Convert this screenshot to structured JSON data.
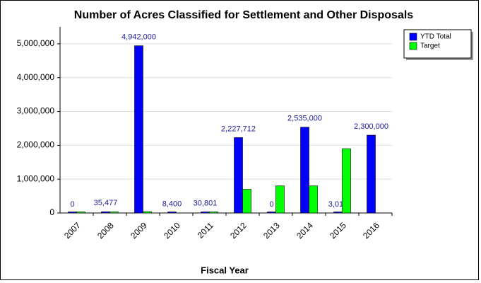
{
  "chart_data": {
    "type": "bar",
    "title": "Number of Acres Classified for Settlement and Other Disposals",
    "x_label": "Fiscal Year",
    "categories": [
      "2007",
      "2008",
      "2009",
      "2010",
      "2011",
      "2012",
      "2013",
      "2014",
      "2015",
      "2016"
    ],
    "series": [
      {
        "name": "YTD Total",
        "color": "#0000ff",
        "values": [
          0,
          35477,
          4942000,
          8400,
          30801,
          2227712,
          0,
          2535000,
          3010,
          2300000
        ],
        "value_labels": [
          "0",
          "35,477",
          "4,942,000",
          "8,400",
          "30,801",
          "2,227,712",
          "0",
          "2,535,000",
          "3,010",
          "2,300,000"
        ]
      },
      {
        "name": "Target",
        "color": "#00ff00",
        "values": [
          10000,
          20000,
          40000,
          null,
          20000,
          700000,
          800000,
          800000,
          1900000,
          null
        ]
      }
    ],
    "ylim": [
      0,
      5500000
    ],
    "yticks": [
      0,
      {
        "value": 1000000,
        "label": "1,000,000"
      },
      {
        "value": 2000000,
        "label": "2,000,000"
      },
      {
        "value": 3000000,
        "label": "3,000,000"
      },
      {
        "value": 4000000,
        "label": "4,000,000"
      },
      {
        "value": 5000000,
        "label": "5,000,000"
      }
    ],
    "grid": true,
    "legend": "top-right"
  }
}
